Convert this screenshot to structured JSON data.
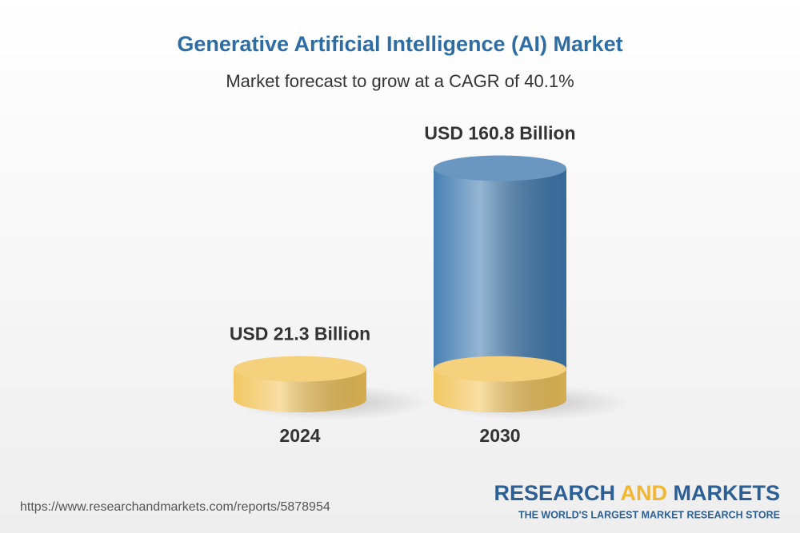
{
  "chart_data": {
    "type": "bar",
    "title": "Generative Artificial Intelligence (AI) Market",
    "subtitle": "Market forecast to grow at a CAGR of 40.1%",
    "categories": [
      "2024",
      "2030"
    ],
    "values": [
      21.3,
      160.8
    ],
    "value_labels": [
      "USD 21.3 Billion",
      "USD 160.8 Billion"
    ],
    "colors": [
      "#f2c45a",
      "#3f7ab0"
    ]
  },
  "footer": {
    "source_url": "https://www.researchandmarkets.com/reports/5878954",
    "brand": {
      "research": "RESEARCH",
      "and": "AND",
      "markets": "MARKETS"
    },
    "tagline": "THE WORLD'S LARGEST MARKET RESEARCH STORE"
  }
}
